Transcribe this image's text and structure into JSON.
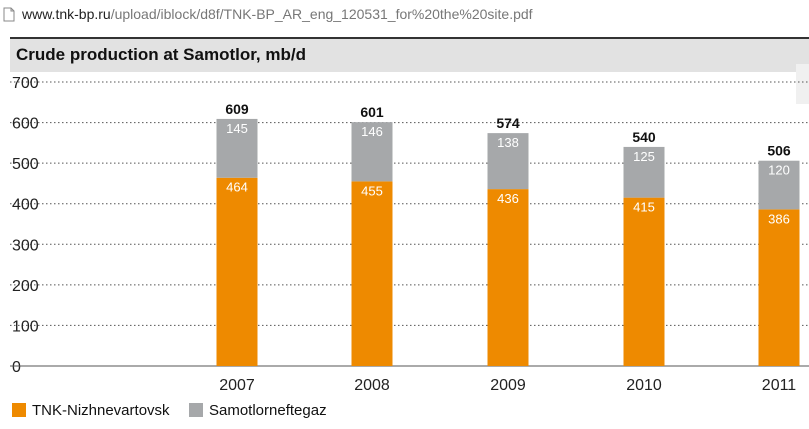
{
  "browser": {
    "url_host": "www.tnk-bp.ru",
    "url_path": "/upload/iblock/d8f/TNK-BP_AR_eng_120531_for%20the%20site.pdf"
  },
  "colors": {
    "tnk": "#ee8a00",
    "samotlor": "#a6a8aa",
    "grid": "#555555",
    "title_band": "#e2e2e2"
  },
  "chart_data": {
    "type": "bar",
    "stacked": true,
    "title": "Crude production at Samotlor, mb/d",
    "categories": [
      "2007",
      "2008",
      "2009",
      "2010",
      "2011"
    ],
    "series": [
      {
        "name": "TNK-Nizhnevartovsk",
        "values": [
          464,
          455,
          436,
          415,
          386
        ],
        "color": "#ee8a00"
      },
      {
        "name": "Samotlorneftegaz",
        "values": [
          145,
          146,
          138,
          125,
          120
        ],
        "color": "#a6a8aa"
      }
    ],
    "totals": [
      609,
      601,
      574,
      540,
      506
    ],
    "y_ticks": [
      0,
      100,
      200,
      300,
      400,
      500,
      600,
      700
    ],
    "ylim": [
      0,
      700
    ],
    "grid": "dotted horizontal",
    "legend_position": "bottom-left"
  }
}
